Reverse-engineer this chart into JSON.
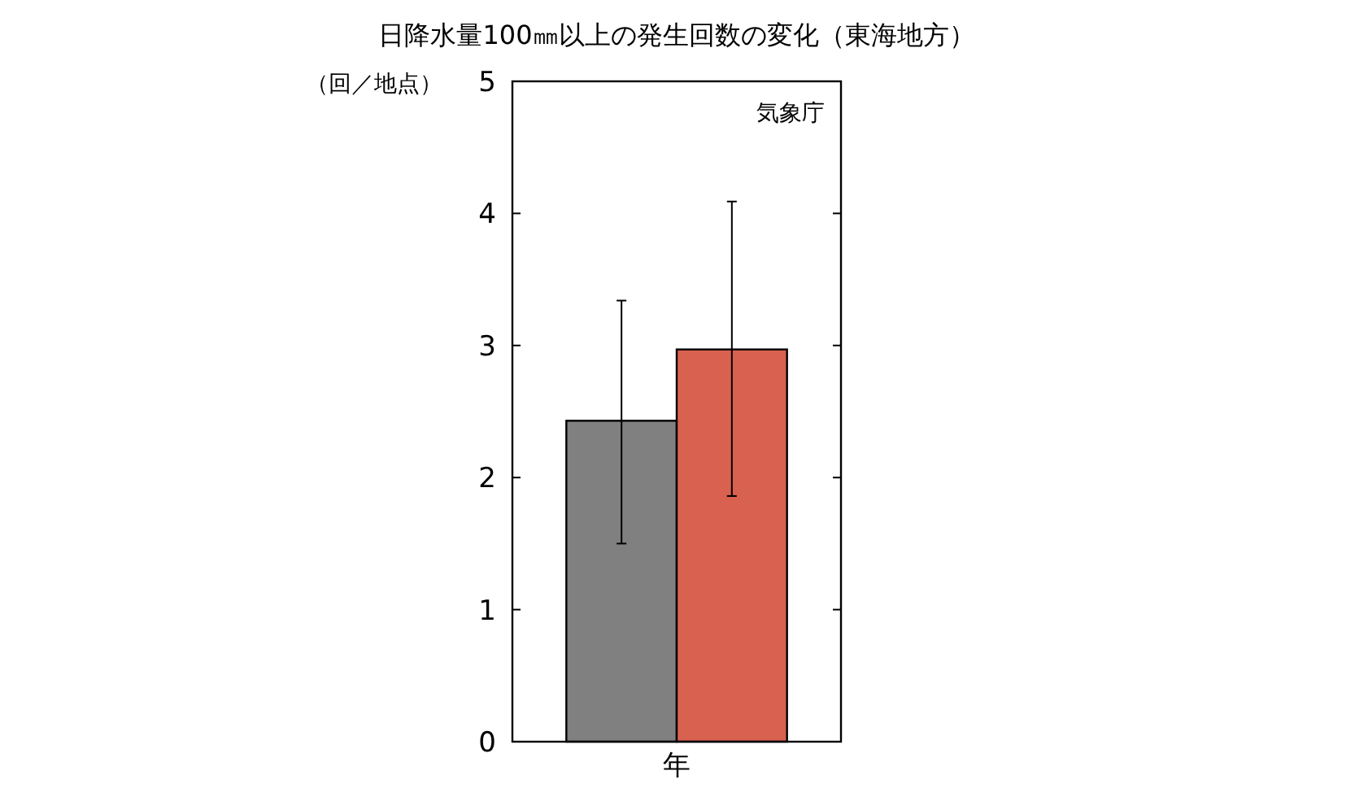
{
  "chart_data": {
    "type": "bar",
    "title": "日降水量100㎜以上の発生回数の変化（東海地方）",
    "ylabel": "（回／地点）",
    "categories": [
      "年"
    ],
    "series": [
      {
        "color": "#808080",
        "values": [
          2.43
        ],
        "errors": [
          [
            1.5,
            3.34
          ]
        ]
      },
      {
        "color": "#d9614f",
        "values": [
          2.97
        ],
        "errors": [
          [
            1.86,
            4.09
          ]
        ]
      }
    ],
    "ylim": [
      0,
      5
    ],
    "yticks": [
      0,
      1,
      2,
      3,
      4,
      5
    ],
    "grid": false,
    "annotations": [
      "気象庁"
    ]
  }
}
